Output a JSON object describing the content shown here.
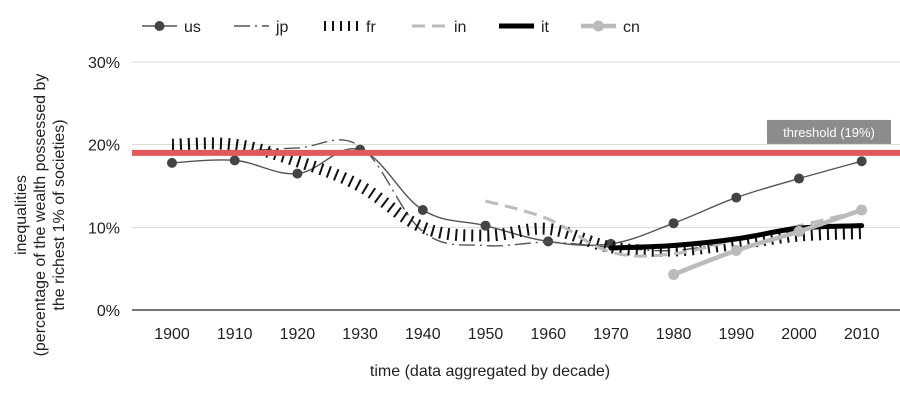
{
  "chart_data": {
    "type": "line",
    "xlabel": "time (data aggregated by decade)",
    "ylabel_lines": [
      "inequalities",
      "(percentage of the wealth possessed by",
      "the  richest 1% of societies)"
    ],
    "x": [
      1900,
      1910,
      1920,
      1930,
      1940,
      1950,
      1960,
      1970,
      1980,
      1990,
      2000,
      2010
    ],
    "x_tick_labels": [
      "1900",
      "1910",
      "1920",
      "1930",
      "1940",
      "1950",
      "1960",
      "1970",
      "1980",
      "1990",
      "2000",
      "2010"
    ],
    "ylim": [
      0,
      30
    ],
    "y_ticks": [
      0,
      10,
      20,
      30
    ],
    "y_tick_labels": [
      "0%",
      "10%",
      "20%",
      "30%"
    ],
    "grid": "horizontal",
    "legend_position": "top",
    "threshold": {
      "value": 19,
      "label": "threshold (19%)",
      "color": "#e05a5a"
    },
    "series": [
      {
        "name": "us",
        "color": "#555555",
        "style": "marker",
        "values": [
          17.8,
          18.1,
          16.5,
          19.4,
          12.1,
          10.2,
          8.3,
          8.0,
          10.5,
          13.6,
          15.9,
          18.0
        ]
      },
      {
        "name": "jp",
        "color": "#555555",
        "style": "dashdot",
        "values": [
          19.0,
          19.2,
          19.6,
          19.8,
          9.5,
          7.8,
          8.2,
          7.6,
          7.2,
          8.4,
          9.8,
          10.2
        ]
      },
      {
        "name": "fr",
        "color": "#111111",
        "style": "hatch",
        "values": [
          20.0,
          20.0,
          18.0,
          15.0,
          10.0,
          9.0,
          9.8,
          7.6,
          7.2,
          8.0,
          9.0,
          9.3
        ]
      },
      {
        "name": "in",
        "color": "#bbbbbb",
        "style": "dash",
        "values": [
          null,
          null,
          null,
          null,
          null,
          13.2,
          11.0,
          7.0,
          6.8,
          8.5,
          10.2,
          12.0
        ]
      },
      {
        "name": "it",
        "color": "#000000",
        "style": "thick",
        "values": [
          null,
          null,
          null,
          null,
          null,
          null,
          null,
          7.5,
          7.8,
          8.6,
          9.9,
          10.2
        ]
      },
      {
        "name": "cn",
        "color": "#bbbbbb",
        "style": "marker-thick",
        "values": [
          null,
          null,
          null,
          null,
          null,
          null,
          null,
          null,
          4.3,
          7.2,
          9.5,
          12.1
        ]
      }
    ]
  }
}
